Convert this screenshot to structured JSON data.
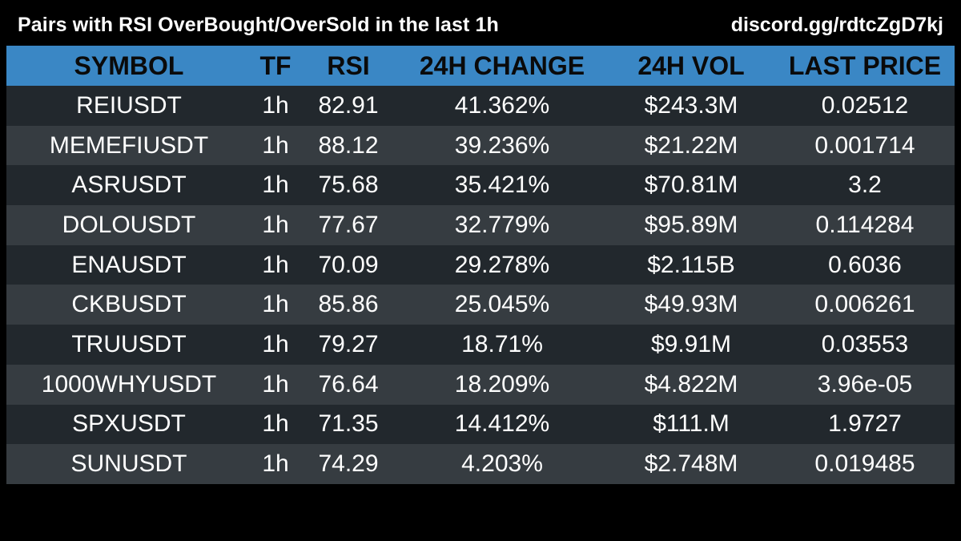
{
  "header": {
    "title": "Pairs with RSI OverBought/OverSold in the last 1h",
    "link": "discord.gg/rdtcZgD7kj"
  },
  "colors": {
    "background": "#000000",
    "header_row": "#3a87c5",
    "row_dark": "#22282d",
    "row_light": "#363c41"
  },
  "table": {
    "columns": [
      "SYMBOL",
      "TF",
      "RSI",
      "24H CHANGE",
      "24H VOL",
      "LAST PRICE"
    ],
    "rows": [
      [
        "REIUSDT",
        "1h",
        "82.91",
        "41.362%",
        "$243.3M",
        "0.02512"
      ],
      [
        "MEMEFIUSDT",
        "1h",
        "88.12",
        "39.236%",
        "$21.22M",
        "0.001714"
      ],
      [
        "ASRUSDT",
        "1h",
        "75.68",
        "35.421%",
        "$70.81M",
        "3.2"
      ],
      [
        "DOLOUSDT",
        "1h",
        "77.67",
        "32.779%",
        "$95.89M",
        "0.114284"
      ],
      [
        "ENAUSDT",
        "1h",
        "70.09",
        "29.278%",
        "$2.115B",
        "0.6036"
      ],
      [
        "CKBUSDT",
        "1h",
        "85.86",
        "25.045%",
        "$49.93M",
        "0.006261"
      ],
      [
        "TRUUSDT",
        "1h",
        "79.27",
        "18.71%",
        "$9.91M",
        "0.03553"
      ],
      [
        "1000WHYUSDT",
        "1h",
        "76.64",
        "18.209%",
        "$4.822M",
        "3.96e-05"
      ],
      [
        "SPXUSDT",
        "1h",
        "71.35",
        "14.412%",
        "$111.M",
        "1.9727"
      ],
      [
        "SUNUSDT",
        "1h",
        "74.29",
        "4.203%",
        "$2.748M",
        "0.019485"
      ]
    ]
  }
}
